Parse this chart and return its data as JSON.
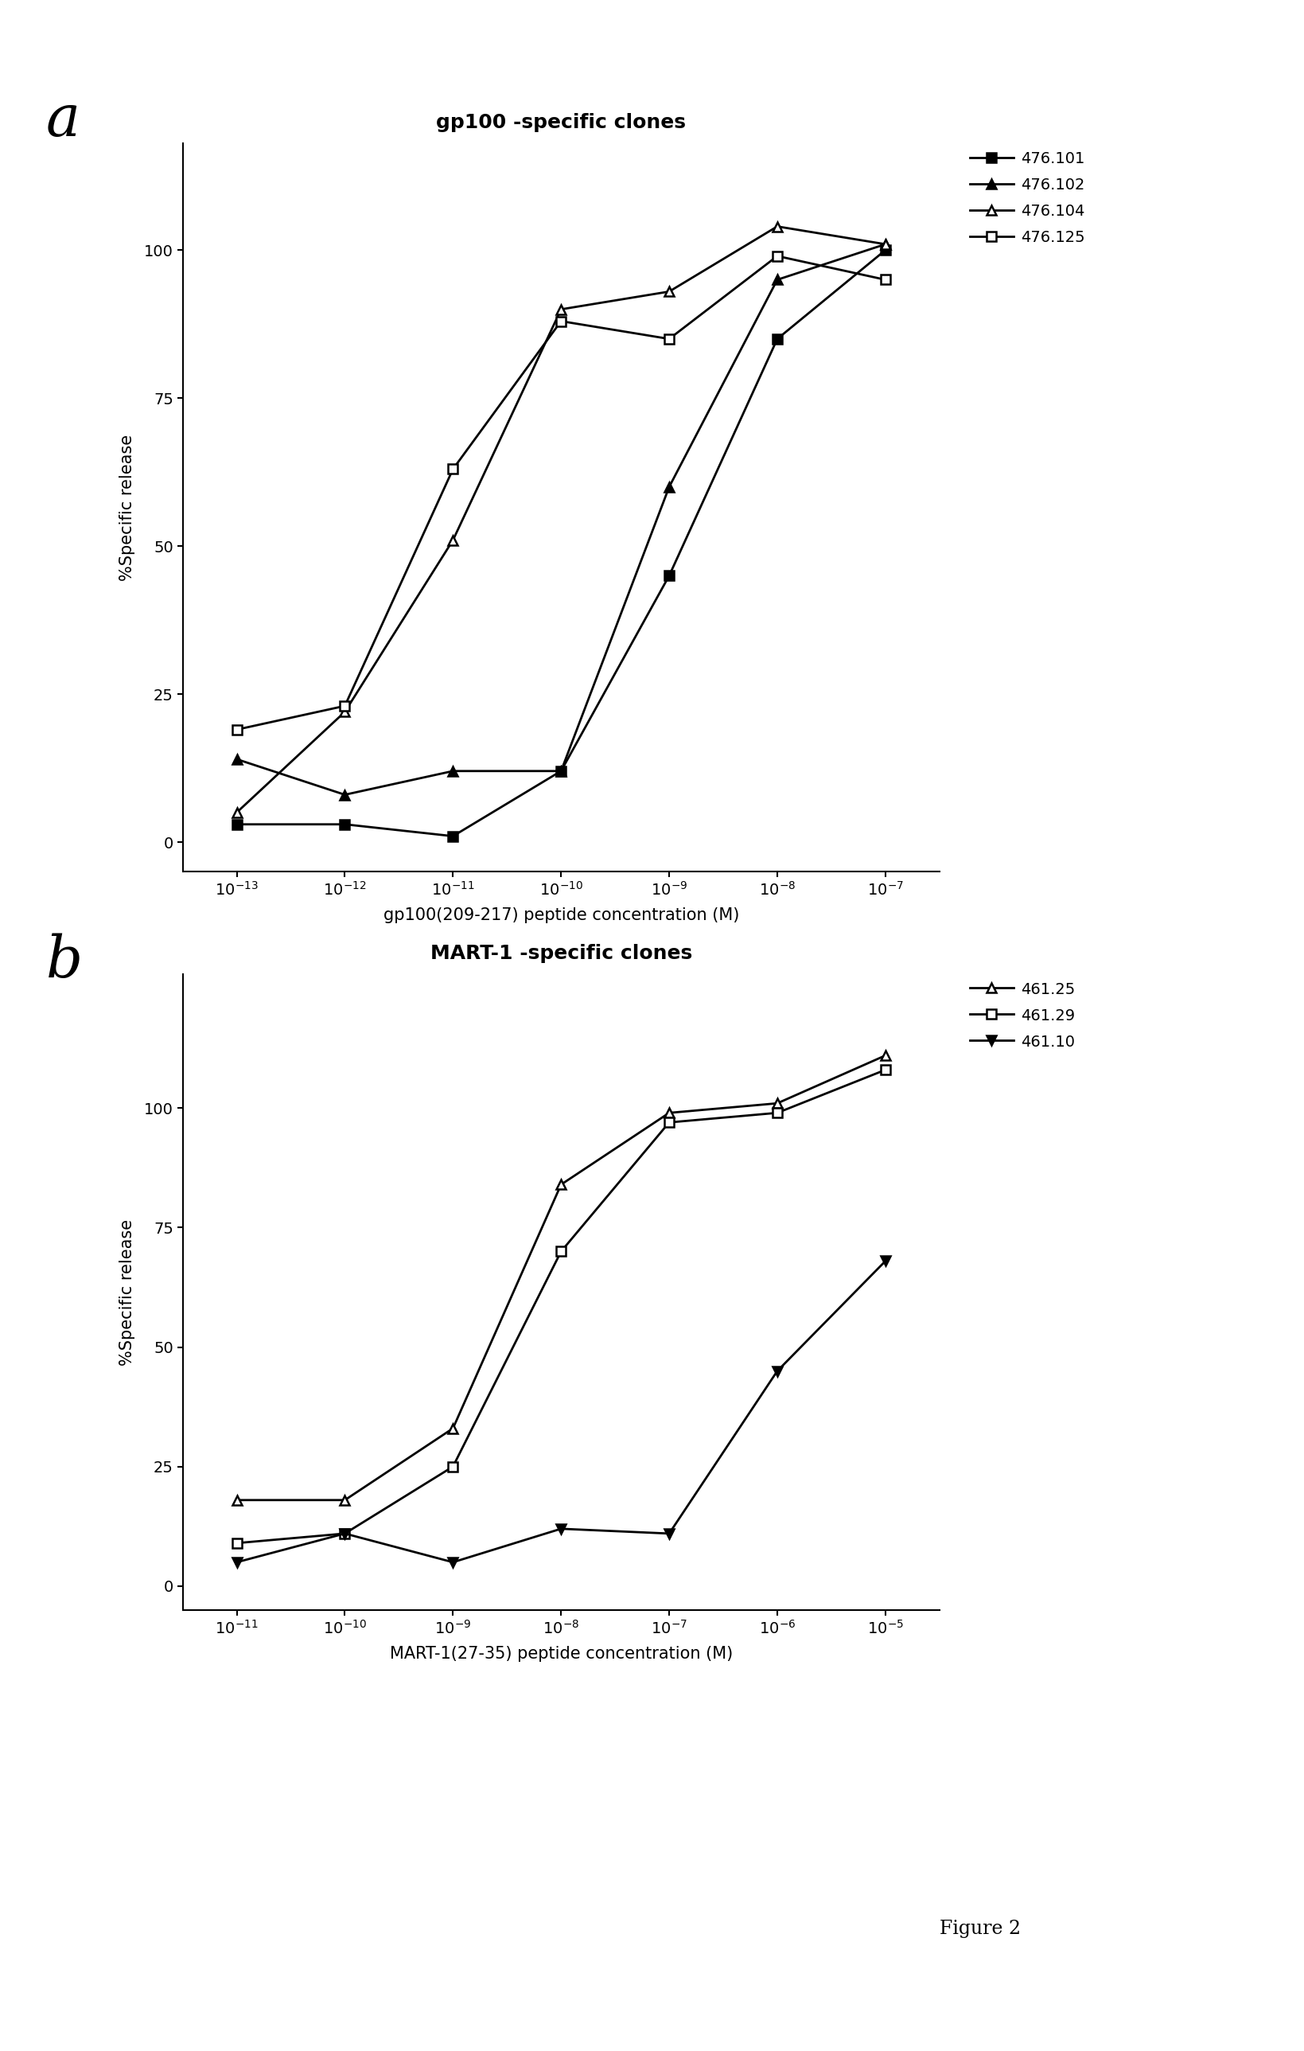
{
  "panel_a": {
    "title": "gp100 -specific clones",
    "xlabel": "gp100(209-217) peptide concentration (M)",
    "ylabel": "%Specific release",
    "x_exponents": [
      -13,
      -12,
      -11,
      -10,
      -9,
      -8,
      -7
    ],
    "series": [
      {
        "label": "476.101",
        "marker": "s",
        "fillstyle": "full",
        "y": [
          3,
          3,
          1,
          12,
          45,
          85,
          100
        ]
      },
      {
        "label": "476.102",
        "marker": "^",
        "fillstyle": "full",
        "y": [
          14,
          8,
          12,
          12,
          60,
          95,
          101
        ]
      },
      {
        "label": "476.104",
        "marker": "^",
        "fillstyle": "none",
        "y": [
          5,
          22,
          51,
          90,
          93,
          104,
          101
        ]
      },
      {
        "label": "476.125",
        "marker": "s",
        "fillstyle": "none",
        "y": [
          19,
          23,
          63,
          88,
          85,
          99,
          95
        ]
      }
    ],
    "ylim": [
      -5,
      118
    ],
    "yticks": [
      0,
      25,
      50,
      75,
      100
    ]
  },
  "panel_b": {
    "title": "MART-1 -specific clones",
    "xlabel": "MART-1(27-35) peptide concentration (M)",
    "ylabel": "%Specific release",
    "x_exponents": [
      -11,
      -10,
      -9,
      -8,
      -7,
      -6,
      -5
    ],
    "series": [
      {
        "label": "461.25",
        "marker": "^",
        "fillstyle": "none",
        "y": [
          18,
          18,
          33,
          84,
          99,
          101,
          111
        ]
      },
      {
        "label": "461.29",
        "marker": "s",
        "fillstyle": "none",
        "y": [
          9,
          11,
          25,
          70,
          97,
          99,
          108
        ]
      },
      {
        "label": "461.10",
        "marker": "v",
        "fillstyle": "full",
        "y": [
          5,
          11,
          5,
          12,
          11,
          45,
          68
        ]
      }
    ],
    "ylim": [
      -5,
      128
    ],
    "yticks": [
      0,
      25,
      50,
      75,
      100
    ]
  },
  "figure_label": "Figure 2",
  "background_color": "white",
  "label_a_text": "a",
  "label_b_text": "b",
  "title_a_bold": true,
  "title_b_bold": true
}
